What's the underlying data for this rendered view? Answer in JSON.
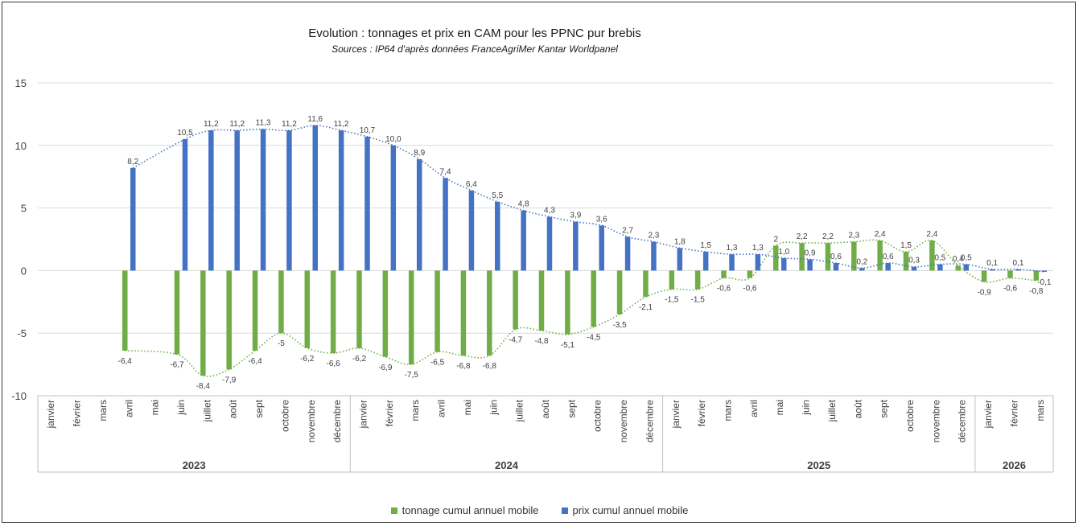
{
  "chart_data": {
    "type": "bar",
    "title": "Evolution : tonnages et prix en CAM pour les PPNC pur brebis",
    "subtitle": "Sources : IP64 d'après données FranceAgriMer Kantar Worldpanel",
    "ylim": [
      -10,
      15
    ],
    "yticks": [
      -10,
      -5,
      0,
      5,
      10,
      15
    ],
    "grid": true,
    "legend_position": "bottom",
    "categories": [
      "janvier",
      "février",
      "mars",
      "avril",
      "mai",
      "juin",
      "juillet",
      "août",
      "sept",
      "octobre",
      "novembre",
      "décembre",
      "janvier",
      "février",
      "mars",
      "avril",
      "mai",
      "juin",
      "juillet",
      "août",
      "sept",
      "octobre",
      "novembre",
      "décembre",
      "janvier",
      "février",
      "mars",
      "avril",
      "mai",
      "juin",
      "juillet",
      "août",
      "sept",
      "octobre",
      "novembre",
      "décembre",
      "janvier",
      "février",
      "mars"
    ],
    "years": [
      {
        "label": "2023",
        "count": 12
      },
      {
        "label": "2024",
        "count": 12
      },
      {
        "label": "2025",
        "count": 12
      },
      {
        "label": "2026",
        "count": 3
      }
    ],
    "series": [
      {
        "name": "tonnage cumul annuel mobile",
        "color": "#70ad47",
        "values": [
          null,
          null,
          null,
          -6.4,
          null,
          -6.7,
          -8.4,
          -7.9,
          -6.4,
          -5,
          -6.2,
          -6.6,
          -6.2,
          -6.9,
          -7.5,
          -6.5,
          -6.8,
          -6.8,
          -4.7,
          -4.8,
          -5.1,
          -4.5,
          -3.5,
          -2.1,
          -1.5,
          -1.5,
          -0.6,
          -0.6,
          2,
          2.2,
          2.2,
          2.3,
          2.4,
          1.5,
          2.4,
          0.4,
          -0.9,
          -0.6,
          -0.8
        ],
        "labels": [
          "",
          "",
          "",
          "-6,4",
          "",
          "-6,7",
          "-8,4",
          "-7,9",
          "-6,4",
          "-5",
          "-6,2",
          "-6,6",
          "-6,2",
          "-6,9",
          "-7,5",
          "-6,5",
          "-6,8",
          "-6,8",
          "-4,7",
          "-4,8",
          "-5,1",
          "-4,5",
          "-3,5",
          "-2,1",
          "-1,5",
          "-1,5",
          "-0,6",
          "-0,6",
          "2",
          "2,2",
          "2,2",
          "2,3",
          "2,4",
          "1,5",
          "2,4",
          "0,4",
          "-0,9",
          "-0,6",
          "-0,8"
        ]
      },
      {
        "name": "prix cumul annuel mobile",
        "color": "#4472c4",
        "values": [
          null,
          null,
          null,
          8.2,
          null,
          10.5,
          11.2,
          11.2,
          11.3,
          11.2,
          11.6,
          11.2,
          10.7,
          10.0,
          8.9,
          7.4,
          6.4,
          5.5,
          4.8,
          4.3,
          3.9,
          3.6,
          2.7,
          2.3,
          1.8,
          1.5,
          1.3,
          1.3,
          1.0,
          0.9,
          0.6,
          0.2,
          0.6,
          0.3,
          0.5,
          0.5,
          0.1,
          0.1,
          -0.1
        ],
        "labels": [
          "",
          "",
          "",
          "8,2",
          "",
          "10,5",
          "11,2",
          "11,2",
          "11,3",
          "11,2",
          "11,6",
          "11,2",
          "10,7",
          "10,0",
          "8,9",
          "7,4",
          "6,4",
          "5,5",
          "4,8",
          "4,3",
          "3,9",
          "3,6",
          "2,7",
          "2,3",
          "1,8",
          "1,5",
          "1,3",
          "1,3",
          "1,0",
          "0,9",
          "0,6",
          "0,2",
          "0,6",
          "0,3",
          "0,5",
          "0,5",
          "0,1",
          "0,1",
          "-0,1"
        ]
      }
    ]
  }
}
